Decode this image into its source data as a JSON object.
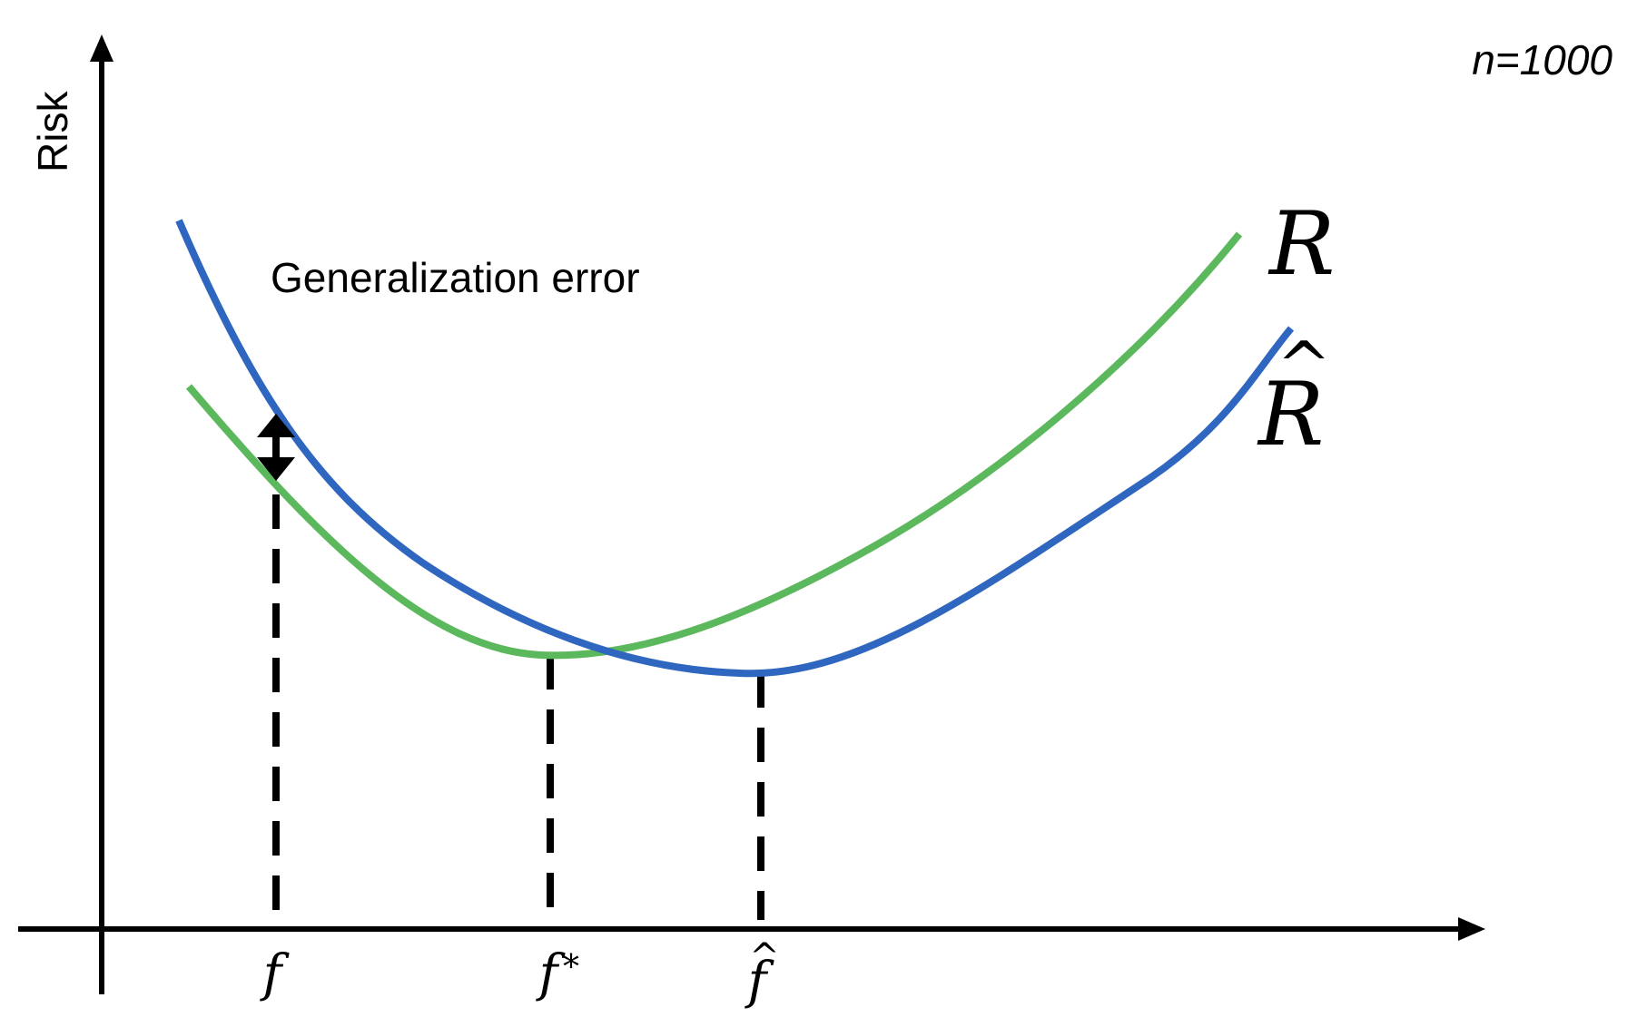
{
  "diagram": {
    "y_axis_label": "Risk",
    "sample_size_label": "n=1000",
    "annotation": "Generalization error",
    "curves": [
      {
        "id": "R",
        "label": "R",
        "color": "#5cb85c"
      },
      {
        "id": "R_hat",
        "label": "R",
        "color": "#2f66bf",
        "hat": "^"
      }
    ],
    "x_markers": [
      {
        "id": "f",
        "label": "f"
      },
      {
        "id": "f_star",
        "label": "f",
        "superscript": "*"
      },
      {
        "id": "f_hat",
        "label": "f",
        "hat": "^"
      }
    ],
    "colors": {
      "axis": "#000000",
      "green_curve": "#5cb85c",
      "blue_curve": "#2f66bf",
      "dashed_lines": "#000000"
    }
  }
}
